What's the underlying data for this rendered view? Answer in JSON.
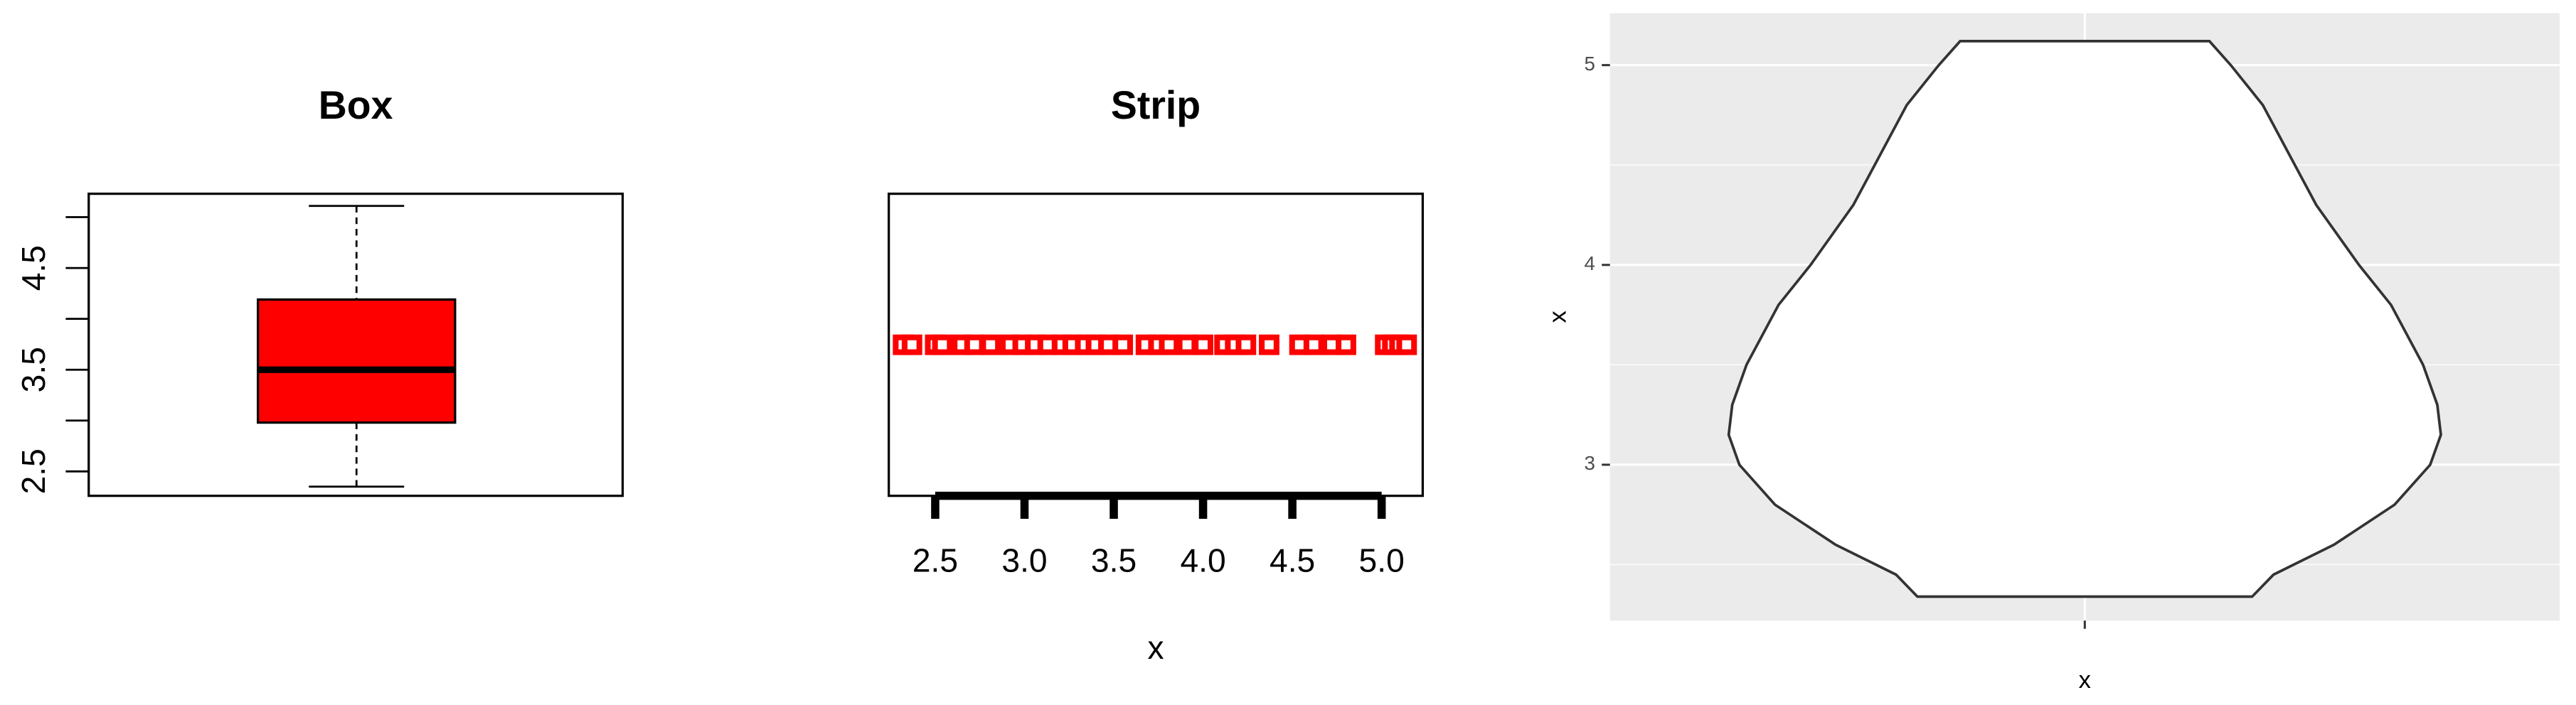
{
  "chart_data": [
    {
      "type": "box",
      "title": "Box",
      "color": "#ff0000",
      "stats": {
        "whisker_low": 2.35,
        "q1": 2.98,
        "median": 3.5,
        "q3": 4.19,
        "whisker_high": 5.11
      },
      "ylim": [
        2.26,
        5.23
      ],
      "yticks": [
        2.5,
        3.5,
        4.5
      ],
      "yticks_unlabeled": [
        3,
        4,
        5
      ]
    },
    {
      "type": "strip",
      "title": "Strip",
      "xlabel": "x",
      "color": "#ff0000",
      "values": [
        2.32,
        2.37,
        2.5,
        2.54,
        2.65,
        2.72,
        2.81,
        2.92,
        2.99,
        3.06,
        3.13,
        3.21,
        3.27,
        3.34,
        3.4,
        3.47,
        3.55,
        3.68,
        3.75,
        3.81,
        3.91,
        4.0,
        4.12,
        4.18,
        4.24,
        4.37,
        4.54,
        4.62,
        4.72,
        4.8,
        5.02,
        5.06,
        5.1,
        5.14
      ],
      "xlim": [
        2.24,
        5.23
      ],
      "xticks": [
        2.5,
        {
          "value": 3,
          "label": "3.0"
        },
        3.5,
        {
          "value": 4,
          "label": "4.0"
        },
        4.5,
        {
          "value": 5,
          "label": "5.0"
        }
      ]
    },
    {
      "type": "violin",
      "xlabel": "x",
      "ylabel": "x",
      "categories": [
        null
      ],
      "y": [
        2.34,
        2.45,
        2.6,
        2.8,
        3.0,
        3.15,
        3.3,
        3.5,
        3.8,
        4.0,
        4.3,
        4.5,
        4.8,
        5.0,
        5.12
      ],
      "widths": [
        0.47,
        0.53,
        0.7,
        0.87,
        0.97,
        1.0,
        0.99,
        0.95,
        0.86,
        0.77,
        0.65,
        0.59,
        0.5,
        0.41,
        0.35
      ],
      "ylim": [
        2.22,
        5.26
      ],
      "yticks": [
        3,
        4,
        5
      ],
      "grid": true,
      "background": "#ebebeb"
    }
  ]
}
